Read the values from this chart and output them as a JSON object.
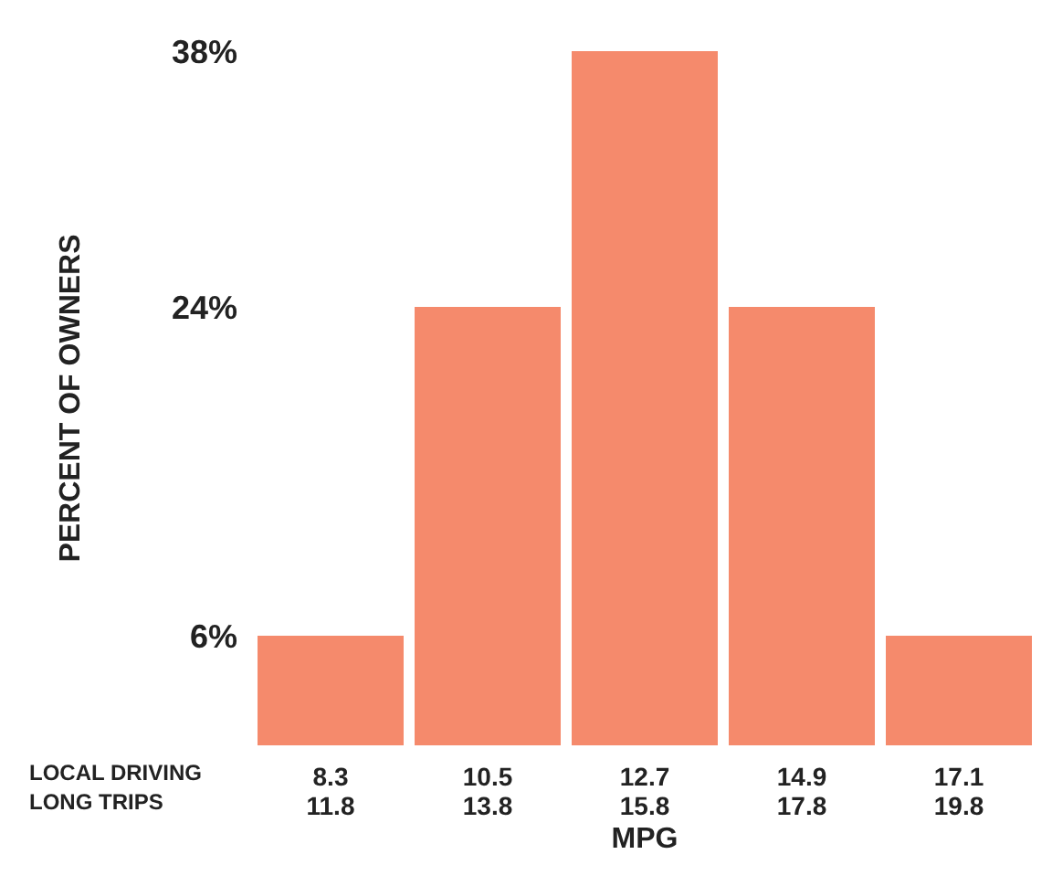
{
  "chart_data": {
    "type": "bar",
    "xlabel": "MPG",
    "ylabel": "PERCENT OF OWNERS",
    "categories": [
      "8.3\n11.8",
      "10.5\n13.8",
      "12.7\n15.8",
      "14.9\n17.8",
      "17.1\n19.8"
    ],
    "values": [
      6,
      24,
      38,
      24,
      6
    ],
    "color": "#f58a6c",
    "ylim": [
      0,
      38
    ],
    "yticks": [
      {
        "value": 6,
        "label": "6%"
      },
      {
        "value": 24,
        "label": "24%"
      },
      {
        "value": 38,
        "label": "38%"
      }
    ],
    "annotations": [
      "LOCAL DRIVING",
      "LONG TRIPS"
    ],
    "grid": false,
    "legend": false
  }
}
